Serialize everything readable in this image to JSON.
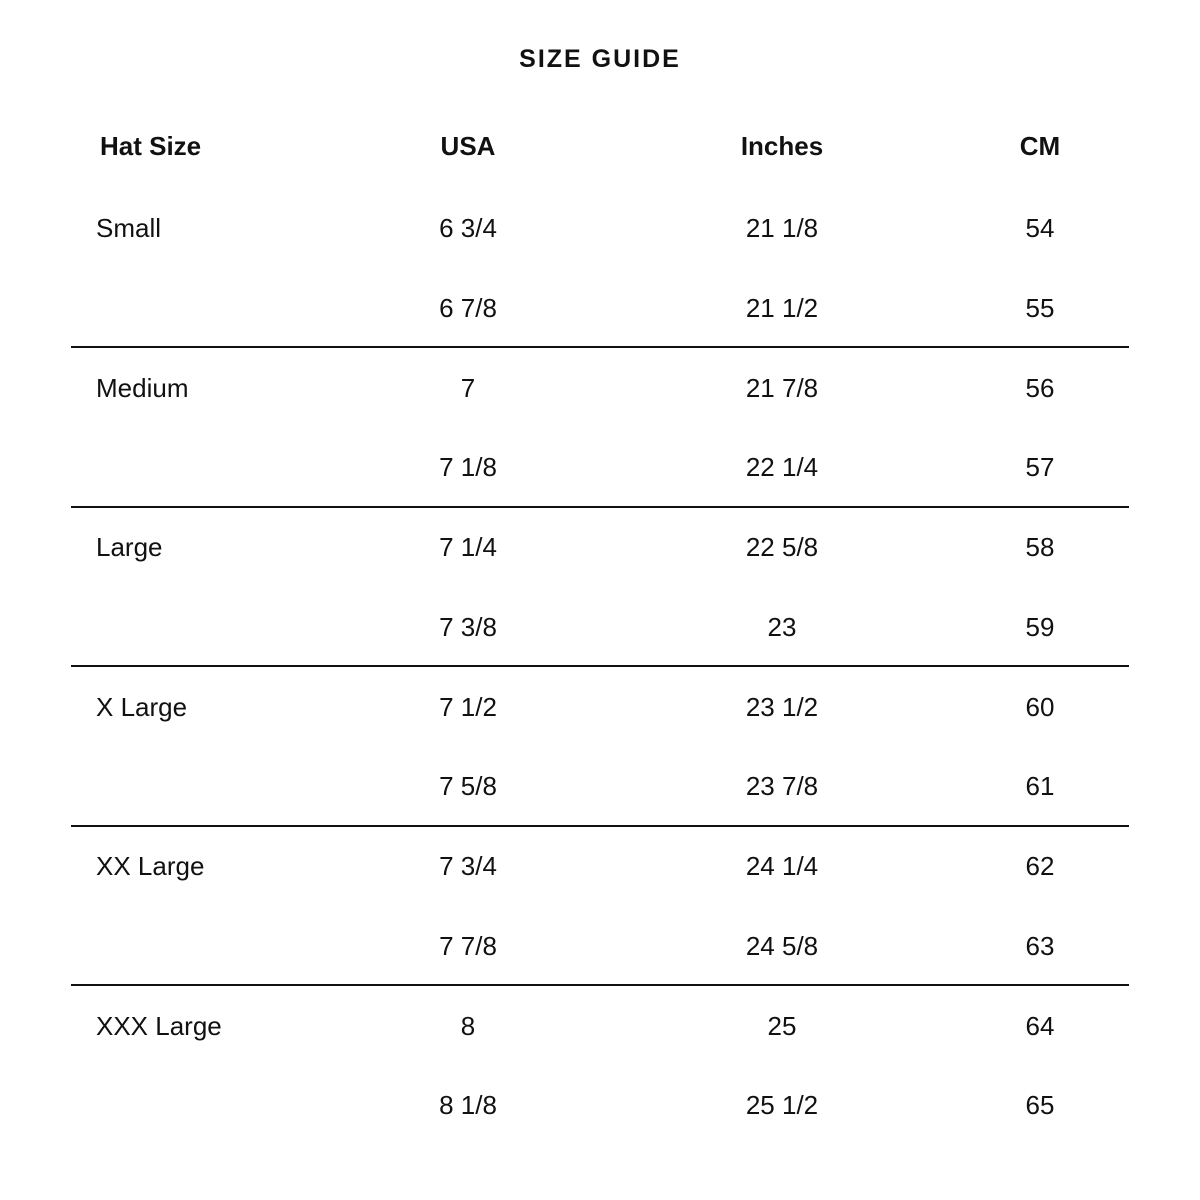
{
  "title": "SIZE GUIDE",
  "headers": [
    "Hat Size",
    "USA",
    "Inches",
    "CM"
  ],
  "groups": [
    {
      "size": "Small",
      "rows": [
        [
          "6 3/4",
          "21 1/8",
          "54"
        ],
        [
          "6 7/8",
          "21 1/2",
          "55"
        ]
      ]
    },
    {
      "size": "Medium",
      "rows": [
        [
          "7",
          "21 7/8",
          "56"
        ],
        [
          "7 1/8",
          "22 1/4",
          "57"
        ]
      ]
    },
    {
      "size": "Large",
      "rows": [
        [
          "7 1/4",
          "22 5/8",
          "58"
        ],
        [
          "7 3/8",
          "23",
          "59"
        ]
      ]
    },
    {
      "size": "X Large",
      "rows": [
        [
          "7 1/2",
          "23 1/2",
          "60"
        ],
        [
          "7 5/8",
          "23 7/8",
          "61"
        ]
      ]
    },
    {
      "size": "XX Large",
      "rows": [
        [
          "7 3/4",
          "24 1/4",
          "62"
        ],
        [
          "7 7/8",
          "24 5/8",
          "63"
        ]
      ]
    },
    {
      "size": "XXX Large",
      "rows": [
        [
          "8",
          "25",
          "64"
        ],
        [
          "8 1/8",
          "25 1/2",
          "65"
        ]
      ]
    }
  ]
}
